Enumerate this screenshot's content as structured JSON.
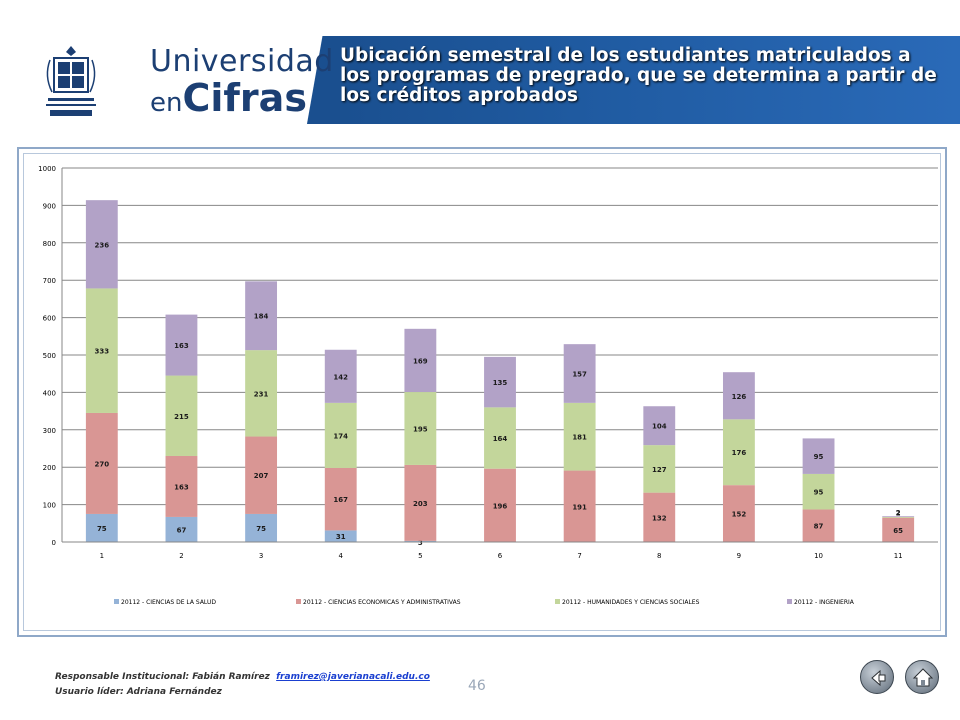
{
  "header": {
    "seal_text": "Pontificia Universidad JAVERIANA Cali",
    "brand_line1": "Universidad",
    "brand_en": "en",
    "brand_cifras": "Cifras",
    "title": "Ubicación semestral de los estudiantes matriculados a los programas de pregrado, que se determina a partir de los créditos aprobados"
  },
  "chart_data": {
    "type": "bar",
    "stacked": true,
    "categories": [
      "1",
      "2",
      "3",
      "4",
      "5",
      "6",
      "7",
      "8",
      "9",
      "10",
      "11"
    ],
    "ylim": [
      0,
      1000
    ],
    "yticks": [
      "0",
      "100",
      "200",
      "300",
      "400",
      "500",
      "600",
      "700",
      "800",
      "900",
      "1000"
    ],
    "grid": true,
    "legend_position": "bottom",
    "series": [
      {
        "name": "20112 - CIENCIAS DE LA SALUD",
        "color": "#95b3d7",
        "values": [
          75,
          67,
          75,
          31,
          3,
          0,
          0,
          0,
          0,
          0,
          0
        ],
        "labels": [
          "75",
          "67",
          "75",
          "31",
          "3",
          "",
          "",
          "",
          "",
          "",
          ""
        ]
      },
      {
        "name": "20112 - CIENCIAS ECONOMICAS Y ADMINISTRATIVAS",
        "color": "#d99694",
        "values": [
          270,
          163,
          207,
          167,
          203,
          196,
          191,
          132,
          152,
          87,
          65
        ],
        "labels": [
          "270",
          "163",
          "207",
          "167",
          "203",
          "196",
          "191",
          "132",
          "152",
          "87",
          "65"
        ]
      },
      {
        "name": "20112 - HUMANIDADES Y CIENCIAS SOCIALES",
        "color": "#c3d69b",
        "values": [
          333,
          215,
          231,
          174,
          195,
          164,
          181,
          127,
          176,
          95,
          2
        ],
        "labels": [
          "333",
          "215",
          "231",
          "174",
          "195",
          "164",
          "181",
          "127",
          "176",
          "95",
          "2"
        ]
      },
      {
        "name": "20112 - INGENIERIA",
        "color": "#b2a2c7",
        "values": [
          236,
          163,
          184,
          142,
          169,
          135,
          157,
          104,
          126,
          95,
          2
        ],
        "labels": [
          "236",
          "163",
          "184",
          "142",
          "169",
          "135",
          "157",
          "104",
          "126",
          "95",
          "2"
        ]
      }
    ]
  },
  "footer": {
    "responsible_label": "Responsable Institucional: Fabián Ramírez",
    "email": "framirez@javerianacali.edu.co",
    "leader": "Usuario líder: Adriana Fernández",
    "page_number": "46"
  },
  "nav": {
    "back_icon": "arrow-left-icon",
    "home_icon": "home-icon"
  }
}
